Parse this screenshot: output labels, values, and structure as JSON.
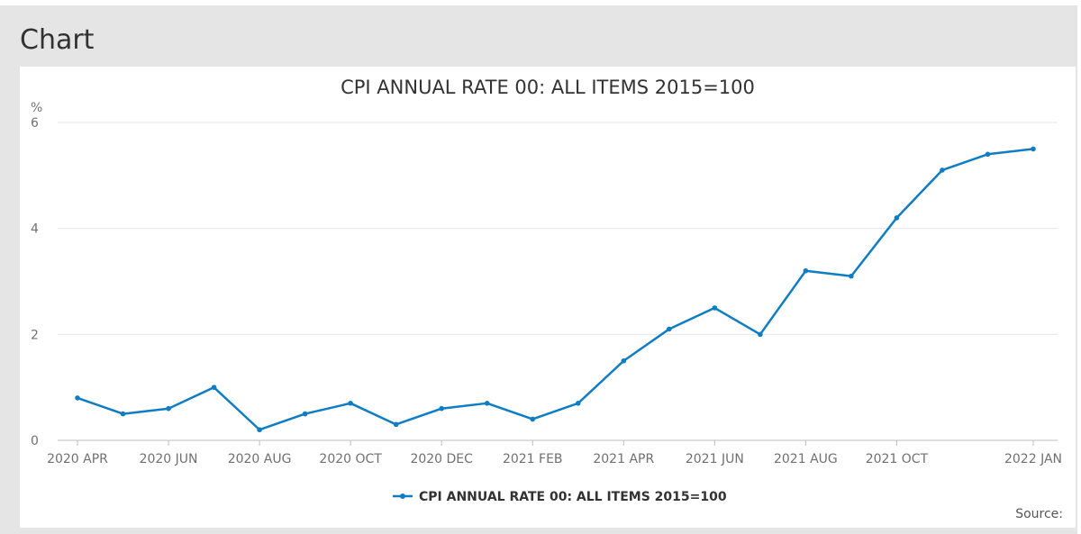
{
  "page": {
    "heading": "Chart",
    "source_label": "Source:"
  },
  "chart_data": {
    "type": "line",
    "title": "CPI ANNUAL RATE 00: ALL ITEMS 2015=100",
    "ylabel": "%",
    "xlabel": "",
    "ylim": [
      0,
      6
    ],
    "yticks": [
      0,
      2,
      4,
      6
    ],
    "x": [
      "2020 APR",
      "2020 MAY",
      "2020 JUN",
      "2020 JUL",
      "2020 AUG",
      "2020 SEP",
      "2020 OCT",
      "2020 NOV",
      "2020 DEC",
      "2021 JAN",
      "2021 FEB",
      "2021 MAR",
      "2021 APR",
      "2021 MAY",
      "2021 JUN",
      "2021 JUL",
      "2021 AUG",
      "2021 SEP",
      "2021 OCT",
      "2021 NOV",
      "2021 DEC",
      "2022 JAN"
    ],
    "xtick_labels": [
      "2020 APR",
      "2020 JUN",
      "2020 AUG",
      "2020 OCT",
      "2020 DEC",
      "2021 FEB",
      "2021 APR",
      "2021 JUN",
      "2021 AUG",
      "2021 OCT",
      "2022 JAN"
    ],
    "series": [
      {
        "name": "CPI ANNUAL RATE 00: ALL ITEMS 2015=100",
        "color": "#0f7dc2",
        "values": [
          0.8,
          0.5,
          0.6,
          1.0,
          0.2,
          0.5,
          0.7,
          0.3,
          0.6,
          0.7,
          0.4,
          0.7,
          1.5,
          2.1,
          2.5,
          2.0,
          3.2,
          3.1,
          4.2,
          5.1,
          5.4,
          5.5
        ]
      }
    ],
    "grid": true,
    "legend_position": "bottom-center"
  }
}
